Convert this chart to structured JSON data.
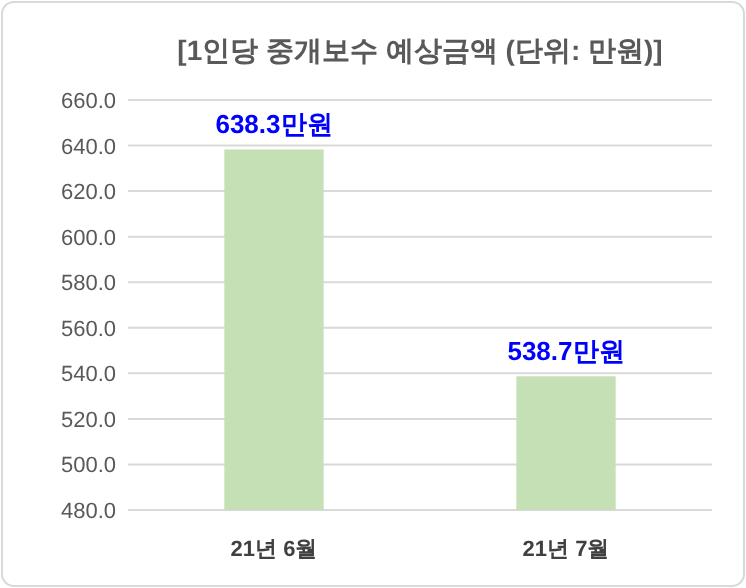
{
  "chart_data": {
    "type": "bar",
    "title": "[1인당 중개보수 예상금액 (단위: 만원)]",
    "categories": [
      "21년 6월",
      "21년 7월"
    ],
    "series": [
      {
        "color": "#c5e0b4",
        "values": [
          638.3,
          538.7
        ]
      }
    ],
    "value_labels": [
      "638.3만원",
      "538.7만원"
    ],
    "ylim": [
      480,
      660
    ],
    "yticks": [
      {
        "value": 480,
        "label": "480.0"
      },
      {
        "value": 500,
        "label": "500.0"
      },
      {
        "value": 520,
        "label": "520.0"
      },
      {
        "value": 540,
        "label": "540.0"
      },
      {
        "value": 560,
        "label": "560.0"
      },
      {
        "value": 580,
        "label": "580.0"
      },
      {
        "value": 600,
        "label": "600.0"
      },
      {
        "value": 620,
        "label": "620.0"
      },
      {
        "value": 640,
        "label": "640.0"
      },
      {
        "value": 660,
        "label": "660.0"
      }
    ],
    "grid": "y"
  }
}
